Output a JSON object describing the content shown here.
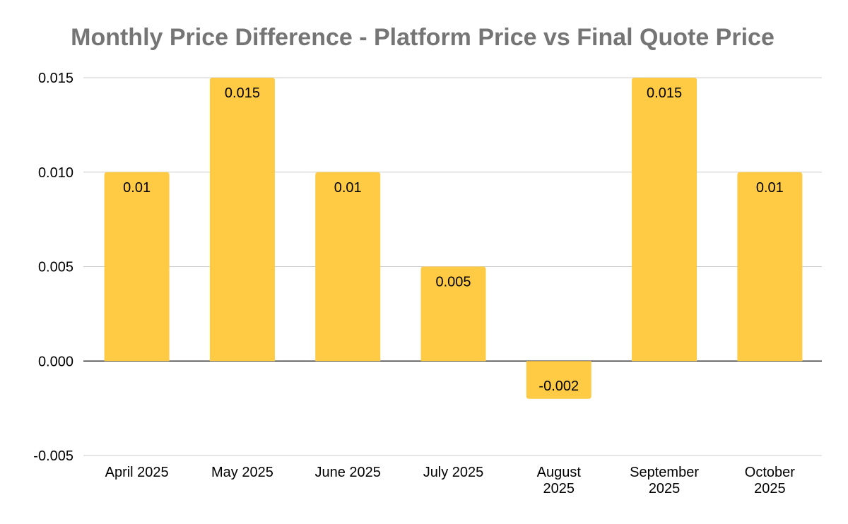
{
  "chart_data": {
    "type": "bar",
    "title": "Monthly Price Difference - Platform Price vs Final Quote Price",
    "xlabel": "",
    "ylabel": "",
    "categories": [
      [
        "April 2025"
      ],
      [
        "May 2025"
      ],
      [
        "June 2025"
      ],
      [
        "July 2025"
      ],
      [
        "August",
        "2025"
      ],
      [
        "September",
        "2025"
      ],
      [
        "October",
        "2025"
      ]
    ],
    "values": [
      0.01,
      0.015,
      0.01,
      0.005,
      -0.002,
      0.015,
      0.01
    ],
    "data_labels": [
      "0.01",
      "0.015",
      "0.01",
      "0.005",
      "-0.002",
      "0.015",
      "0.01"
    ],
    "ylim": [
      -0.005,
      0.015
    ],
    "yticks": [
      -0.005,
      0.0,
      0.005,
      0.01,
      0.015
    ],
    "ytick_labels": [
      "-0.005",
      "0.000",
      "0.005",
      "0.010",
      "0.015"
    ],
    "grid": true,
    "legend": "none",
    "bar_color": "#FFCB45",
    "grid_color": "#CCCCCC",
    "zero_line_color": "#333333"
  }
}
